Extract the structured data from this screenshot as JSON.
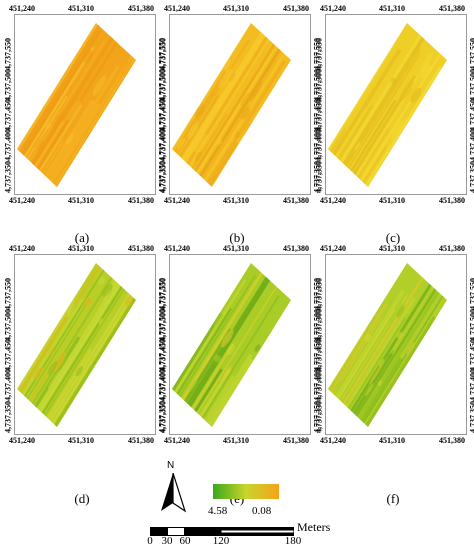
{
  "panels": [
    {
      "label": "(a)",
      "palette": [
        "#f2a51a",
        "#f5b323",
        "#ee9b17",
        "#f7be2b"
      ]
    },
    {
      "label": "(b)",
      "palette": [
        "#f3bd21",
        "#f0ad1d",
        "#f6c92b",
        "#e9a41a"
      ]
    },
    {
      "label": "(c)",
      "palette": [
        "#efce27",
        "#e9c022",
        "#f4d934",
        "#dfbb1f"
      ]
    },
    {
      "label": "(d)",
      "palette": [
        "#b9cf27",
        "#d3d431",
        "#91bd1d",
        "#e5b41d",
        "#c8db3a"
      ]
    },
    {
      "label": "(e)",
      "palette": [
        "#a9cc27",
        "#c9d932",
        "#84bb1d",
        "#dcce2c",
        "#6faa18"
      ]
    },
    {
      "label": "(f)",
      "palette": [
        "#b2ce28",
        "#cfd833",
        "#8abd1e",
        "#dfc92b",
        "#7cb41c"
      ]
    }
  ],
  "axes": {
    "x_ticks": [
      "451,240",
      "451,310",
      "451,380"
    ],
    "y_ticks": [
      "4,737,350",
      "4,737,400",
      "4,737,450",
      "4,737,500",
      "4,737,550"
    ]
  },
  "legend": {
    "high_label": "4.58",
    "low_label": "0.08",
    "high_color": "#3aa81c",
    "low_color": "#f5a21a"
  },
  "north_arrow": {
    "label": "N",
    "icon": "north-arrow-icon"
  },
  "scale_bar": {
    "unit": "Meters",
    "labels": [
      "0",
      "30",
      "60",
      "120",
      "180"
    ]
  }
}
